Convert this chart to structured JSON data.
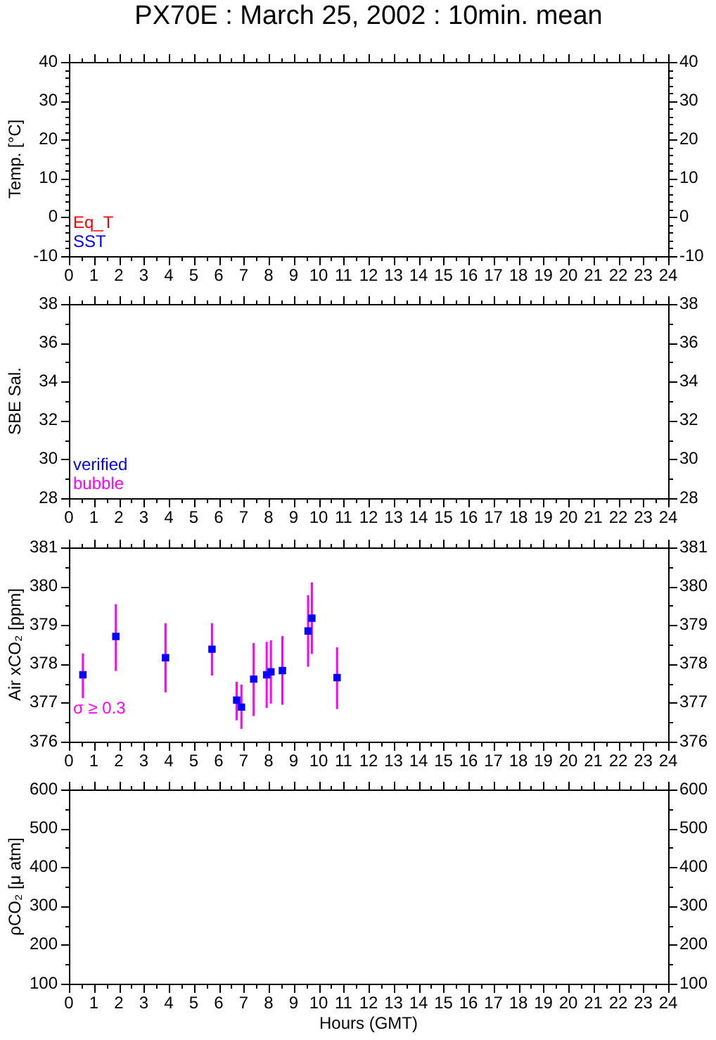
{
  "chart_data": [
    {
      "type": "scatter",
      "title": "PX70E : March 25, 2002 : 10min. mean",
      "ylabel": "Temp. [°C]",
      "xlim": [
        0,
        24
      ],
      "xticks": [
        0,
        {
          "value": 0.5,
          "label": null
        },
        1,
        {
          "value": 1.5,
          "label": null
        },
        2,
        {
          "value": 2.5,
          "label": null
        },
        3,
        {
          "value": 3.5,
          "label": null
        },
        4,
        {
          "value": 4.5,
          "label": null
        },
        5,
        {
          "value": 5.5,
          "label": null
        },
        6,
        {
          "value": 6.5,
          "label": null
        },
        7,
        {
          "value": 7.5,
          "label": null
        },
        8,
        {
          "value": 8.5,
          "label": null
        },
        9,
        {
          "value": 9.5,
          "label": null
        },
        10,
        {
          "value": 10.5,
          "label": null
        },
        11,
        {
          "value": 11.5,
          "label": null
        },
        12,
        {
          "value": 12.5,
          "label": null
        },
        13,
        {
          "value": 13.5,
          "label": null
        },
        14,
        {
          "value": 14.5,
          "label": null
        },
        15,
        {
          "value": 15.5,
          "label": null
        },
        16,
        {
          "value": 16.5,
          "label": null
        },
        17,
        {
          "value": 17.5,
          "label": null
        },
        18,
        {
          "value": 18.5,
          "label": null
        },
        19,
        {
          "value": 19.5,
          "label": null
        },
        20,
        {
          "value": 20.5,
          "label": null
        },
        21,
        {
          "value": 21.5,
          "label": null
        },
        22,
        {
          "value": 22.5,
          "label": null
        },
        23,
        {
          "value": 23.5,
          "label": null
        },
        24
      ],
      "ylim": [
        -10,
        40
      ],
      "yticks": [
        -10,
        {
          "value": -8,
          "label": null
        },
        {
          "value": -6,
          "label": null
        },
        {
          "value": -4,
          "label": null
        },
        {
          "value": -2,
          "label": null
        },
        0,
        {
          "value": 2,
          "label": null
        },
        {
          "value": 4,
          "label": null
        },
        {
          "value": 6,
          "label": null
        },
        {
          "value": 8,
          "label": null
        },
        10,
        {
          "value": 12,
          "label": null
        },
        {
          "value": 14,
          "label": null
        },
        {
          "value": 16,
          "label": null
        },
        {
          "value": 18,
          "label": null
        },
        20,
        {
          "value": 22,
          "label": null
        },
        {
          "value": 24,
          "label": null
        },
        {
          "value": 26,
          "label": null
        },
        {
          "value": 28,
          "label": null
        },
        30,
        {
          "value": 32,
          "label": null
        },
        {
          "value": 34,
          "label": null
        },
        {
          "value": 36,
          "label": null
        },
        {
          "value": 38,
          "label": null
        },
        40
      ],
      "y2lim": [
        -10,
        40
      ],
      "y2ticks": [
        -10,
        {
          "value": -8,
          "label": null
        },
        {
          "value": -6,
          "label": null
        },
        {
          "value": -4,
          "label": null
        },
        {
          "value": -2,
          "label": null
        },
        0,
        {
          "value": 2,
          "label": null
        },
        {
          "value": 4,
          "label": null
        },
        {
          "value": 6,
          "label": null
        },
        {
          "value": 8,
          "label": null
        },
        10,
        {
          "value": 12,
          "label": null
        },
        {
          "value": 14,
          "label": null
        },
        {
          "value": 16,
          "label": null
        },
        {
          "value": 18,
          "label": null
        },
        20,
        {
          "value": 22,
          "label": null
        },
        {
          "value": 24,
          "label": null
        },
        {
          "value": 26,
          "label": null
        },
        {
          "value": 28,
          "label": null
        },
        30,
        {
          "value": 32,
          "label": null
        },
        {
          "value": 34,
          "label": null
        },
        {
          "value": 36,
          "label": null
        },
        {
          "value": 38,
          "label": null
        },
        40
      ],
      "series": [
        {
          "name": "Eq_T",
          "color": "#ff0000",
          "x": [
            null
          ],
          "values": [
            null
          ]
        },
        {
          "name": "SST",
          "color": "#0000ff",
          "x": [
            null
          ],
          "values": [
            null
          ]
        }
      ]
    },
    {
      "type": "scatter",
      "ylabel": "SBE Sal.",
      "xlim": [
        0,
        24
      ],
      "xticks": [
        0,
        {
          "value": 0.5,
          "label": null
        },
        1,
        {
          "value": 1.5,
          "label": null
        },
        2,
        {
          "value": 2.5,
          "label": null
        },
        3,
        {
          "value": 3.5,
          "label": null
        },
        4,
        {
          "value": 4.5,
          "label": null
        },
        5,
        {
          "value": 5.5,
          "label": null
        },
        6,
        {
          "value": 6.5,
          "label": null
        },
        7,
        {
          "value": 7.5,
          "label": null
        },
        8,
        {
          "value": 8.5,
          "label": null
        },
        9,
        {
          "value": 9.5,
          "label": null
        },
        10,
        {
          "value": 10.5,
          "label": null
        },
        11,
        {
          "value": 11.5,
          "label": null
        },
        12,
        {
          "value": 12.5,
          "label": null
        },
        13,
        {
          "value": 13.5,
          "label": null
        },
        14,
        {
          "value": 14.5,
          "label": null
        },
        15,
        {
          "value": 15.5,
          "label": null
        },
        16,
        {
          "value": 16.5,
          "label": null
        },
        17,
        {
          "value": 17.5,
          "label": null
        },
        18,
        {
          "value": 18.5,
          "label": null
        },
        19,
        {
          "value": 19.5,
          "label": null
        },
        20,
        {
          "value": 20.5,
          "label": null
        },
        21,
        {
          "value": 21.5,
          "label": null
        },
        22,
        {
          "value": 22.5,
          "label": null
        },
        23,
        {
          "value": 23.5,
          "label": null
        },
        24
      ],
      "ylim": [
        28,
        38
      ],
      "yticks": [
        28,
        {
          "value": 29,
          "label": null
        },
        30,
        {
          "value": 31,
          "label": null
        },
        32,
        {
          "value": 33,
          "label": null
        },
        34,
        {
          "value": 35,
          "label": null
        },
        36,
        {
          "value": 37,
          "label": null
        },
        38
      ],
      "y2lim": [
        28,
        38
      ],
      "y2ticks": [
        28,
        {
          "value": 29,
          "label": null
        },
        30,
        {
          "value": 31,
          "label": null
        },
        32,
        {
          "value": 33,
          "label": null
        },
        34,
        {
          "value": 35,
          "label": null
        },
        36,
        {
          "value": 37,
          "label": null
        },
        38
      ],
      "series": [
        {
          "name": "verified",
          "color": "#0000ff",
          "x": [
            null
          ],
          "values": [
            null
          ]
        },
        {
          "name": "bubble",
          "color": "#ff00ff",
          "x": [
            null
          ],
          "values": [
            null
          ]
        }
      ]
    },
    {
      "type": "scatter",
      "ylabel": "Air xCO₂ [ppm]",
      "xlim": [
        0,
        24
      ],
      "xticks": [
        0,
        {
          "value": 0.5,
          "label": null
        },
        1,
        {
          "value": 1.5,
          "label": null
        },
        2,
        {
          "value": 2.5,
          "label": null
        },
        3,
        {
          "value": 3.5,
          "label": null
        },
        4,
        {
          "value": 4.5,
          "label": null
        },
        5,
        {
          "value": 5.5,
          "label": null
        },
        6,
        {
          "value": 6.5,
          "label": null
        },
        7,
        {
          "value": 7.5,
          "label": null
        },
        8,
        {
          "value": 8.5,
          "label": null
        },
        9,
        {
          "value": 9.5,
          "label": null
        },
        10,
        {
          "value": 10.5,
          "label": null
        },
        11,
        {
          "value": 11.5,
          "label": null
        },
        12,
        {
          "value": 12.5,
          "label": null
        },
        13,
        {
          "value": 13.5,
          "label": null
        },
        14,
        {
          "value": 14.5,
          "label": null
        },
        15,
        {
          "value": 15.5,
          "label": null
        },
        16,
        {
          "value": 16.5,
          "label": null
        },
        17,
        {
          "value": 17.5,
          "label": null
        },
        18,
        {
          "value": 18.5,
          "label": null
        },
        19,
        {
          "value": 19.5,
          "label": null
        },
        20,
        {
          "value": 20.5,
          "label": null
        },
        21,
        {
          "value": 21.5,
          "label": null
        },
        22,
        {
          "value": 22.5,
          "label": null
        },
        23,
        {
          "value": 23.5,
          "label": null
        },
        24
      ],
      "ylim": [
        376,
        381
      ],
      "yticks": [
        376,
        {
          "value": 376.5,
          "label": null
        },
        377,
        {
          "value": 377.5,
          "label": null
        },
        378,
        {
          "value": 378.5,
          "label": null
        },
        379,
        {
          "value": 379.5,
          "label": null
        },
        380,
        {
          "value": 380.5,
          "label": null
        },
        381
      ],
      "y2lim": [
        376,
        381
      ],
      "y2ticks": [
        376,
        {
          "value": 376.5,
          "label": null
        },
        377,
        {
          "value": 377.5,
          "label": null
        },
        378,
        {
          "value": 378.5,
          "label": null
        },
        379,
        {
          "value": 379.5,
          "label": null
        },
        380,
        {
          "value": 380.5,
          "label": null
        },
        381
      ],
      "annotations": [
        "σ ≥ 0.3"
      ],
      "marker": "square",
      "series": [
        {
          "color": "#0000ff",
          "x": [
            0.56,
            1.88,
            3.87,
            5.73,
            6.72,
            6.91,
            7.4,
            7.92,
            8.09,
            8.55,
            9.58,
            9.73,
            10.74
          ],
          "values": [
            377.72,
            378.71,
            378.16,
            378.38,
            377.07,
            376.89,
            377.61,
            377.72,
            377.8,
            377.83,
            378.85,
            379.18,
            377.65
          ],
          "errors": [
            [
              377.12,
              378.27
            ],
            [
              377.82,
              379.54
            ],
            [
              377.27,
              379.05
            ],
            [
              377.7,
              379.05
            ],
            [
              376.55,
              377.54
            ],
            [
              376.33,
              377.47
            ],
            [
              376.66,
              378.54
            ],
            [
              376.87,
              378.57
            ],
            [
              376.98,
              378.61
            ],
            [
              376.95,
              378.72
            ],
            [
              377.93,
              379.77
            ],
            [
              378.26,
              380.1
            ],
            [
              376.84,
              378.43
            ]
          ]
        }
      ]
    },
    {
      "type": "scatter",
      "ylabel": "ρCO₂ [μ atm]",
      "xlabel": "Hours (GMT)",
      "xlim": [
        0,
        24
      ],
      "xticks": [
        0,
        {
          "value": 0.5,
          "label": null
        },
        1,
        {
          "value": 1.5,
          "label": null
        },
        2,
        {
          "value": 2.5,
          "label": null
        },
        3,
        {
          "value": 3.5,
          "label": null
        },
        4,
        {
          "value": 4.5,
          "label": null
        },
        5,
        {
          "value": 5.5,
          "label": null
        },
        6,
        {
          "value": 6.5,
          "label": null
        },
        7,
        {
          "value": 7.5,
          "label": null
        },
        8,
        {
          "value": 8.5,
          "label": null
        },
        9,
        {
          "value": 9.5,
          "label": null
        },
        10,
        {
          "value": 10.5,
          "label": null
        },
        11,
        {
          "value": 11.5,
          "label": null
        },
        12,
        {
          "value": 12.5,
          "label": null
        },
        13,
        {
          "value": 13.5,
          "label": null
        },
        14,
        {
          "value": 14.5,
          "label": null
        },
        15,
        {
          "value": 15.5,
          "label": null
        },
        16,
        {
          "value": 16.5,
          "label": null
        },
        17,
        {
          "value": 17.5,
          "label": null
        },
        18,
        {
          "value": 18.5,
          "label": null
        },
        19,
        {
          "value": 19.5,
          "label": null
        },
        20,
        {
          "value": 20.5,
          "label": null
        },
        21,
        {
          "value": 21.5,
          "label": null
        },
        22,
        {
          "value": 22.5,
          "label": null
        },
        23,
        {
          "value": 23.5,
          "label": null
        },
        24
      ],
      "ylim": [
        100,
        600
      ],
      "yticks": [
        100,
        {
          "value": 150,
          "label": null
        },
        200,
        {
          "value": 250,
          "label": null
        },
        300,
        {
          "value": 350,
          "label": null
        },
        400,
        {
          "value": 450,
          "label": null
        },
        500,
        {
          "value": 550,
          "label": null
        },
        600
      ],
      "y2lim": [
        100,
        600
      ],
      "y2ticks": [
        100,
        {
          "value": 150,
          "label": null
        },
        200,
        {
          "value": 250,
          "label": null
        },
        300,
        {
          "value": 350,
          "label": null
        },
        400,
        {
          "value": 450,
          "label": null
        },
        500,
        {
          "value": 550,
          "label": null
        },
        600
      ]
    }
  ]
}
